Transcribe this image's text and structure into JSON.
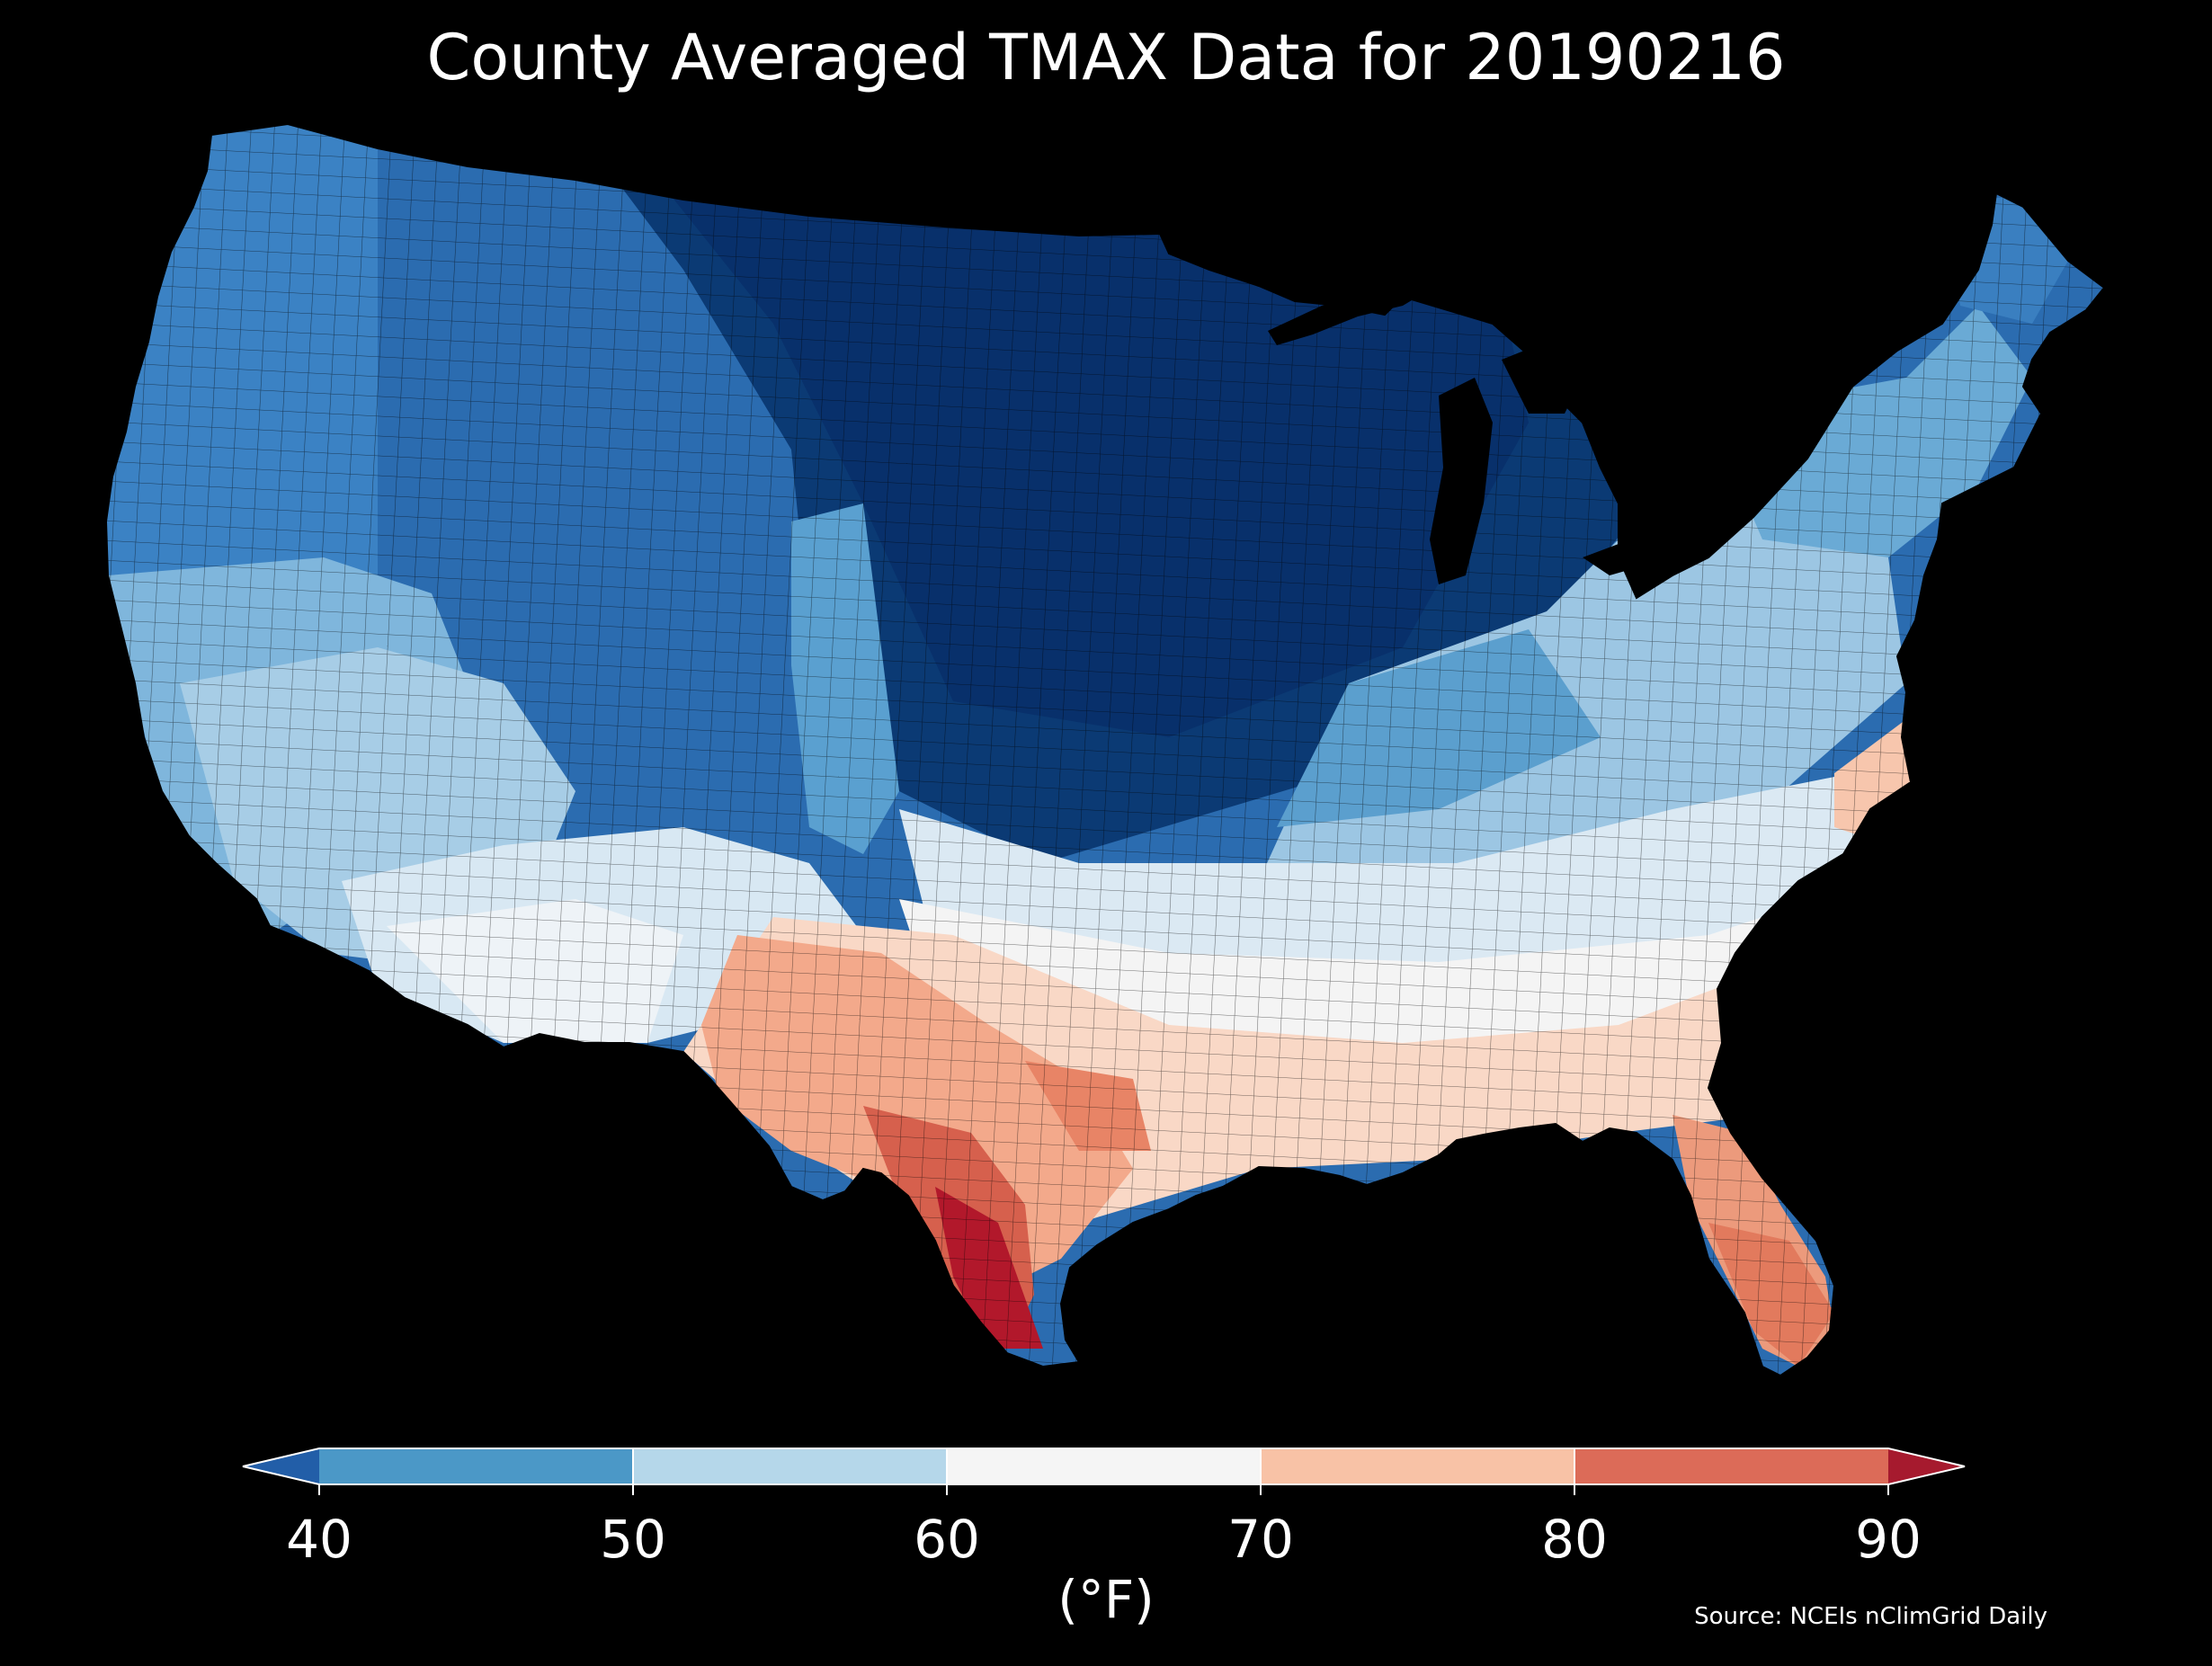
{
  "title": "County Averaged TMAX Data for 20190216",
  "colorbar": {
    "ticks": [
      "40",
      "50",
      "60",
      "70",
      "80",
      "90"
    ],
    "unit": "(°F)",
    "bins": [
      {
        "from": 40,
        "to": 50,
        "color": "#4b98c7"
      },
      {
        "from": 50,
        "to": 60,
        "color": "#b5d7ea"
      },
      {
        "from": 60,
        "to": 70,
        "color": "#f5f5f5"
      },
      {
        "from": 70,
        "to": 80,
        "color": "#f8c2a6"
      },
      {
        "from": 80,
        "to": 90,
        "color": "#dc6b58"
      }
    ],
    "under_color": "#225ea8",
    "over_color": "#a61a2e"
  },
  "source": "Source: NCEIs nClimGrid Daily",
  "colors": {
    "background": "#000000",
    "text": "#ffffff",
    "coldest": "#08306b",
    "cold": "#2166ac",
    "cool": "#6baed6",
    "mild": "#f7f7f7",
    "warm": "#f4a582",
    "hot": "#b2182b"
  }
}
